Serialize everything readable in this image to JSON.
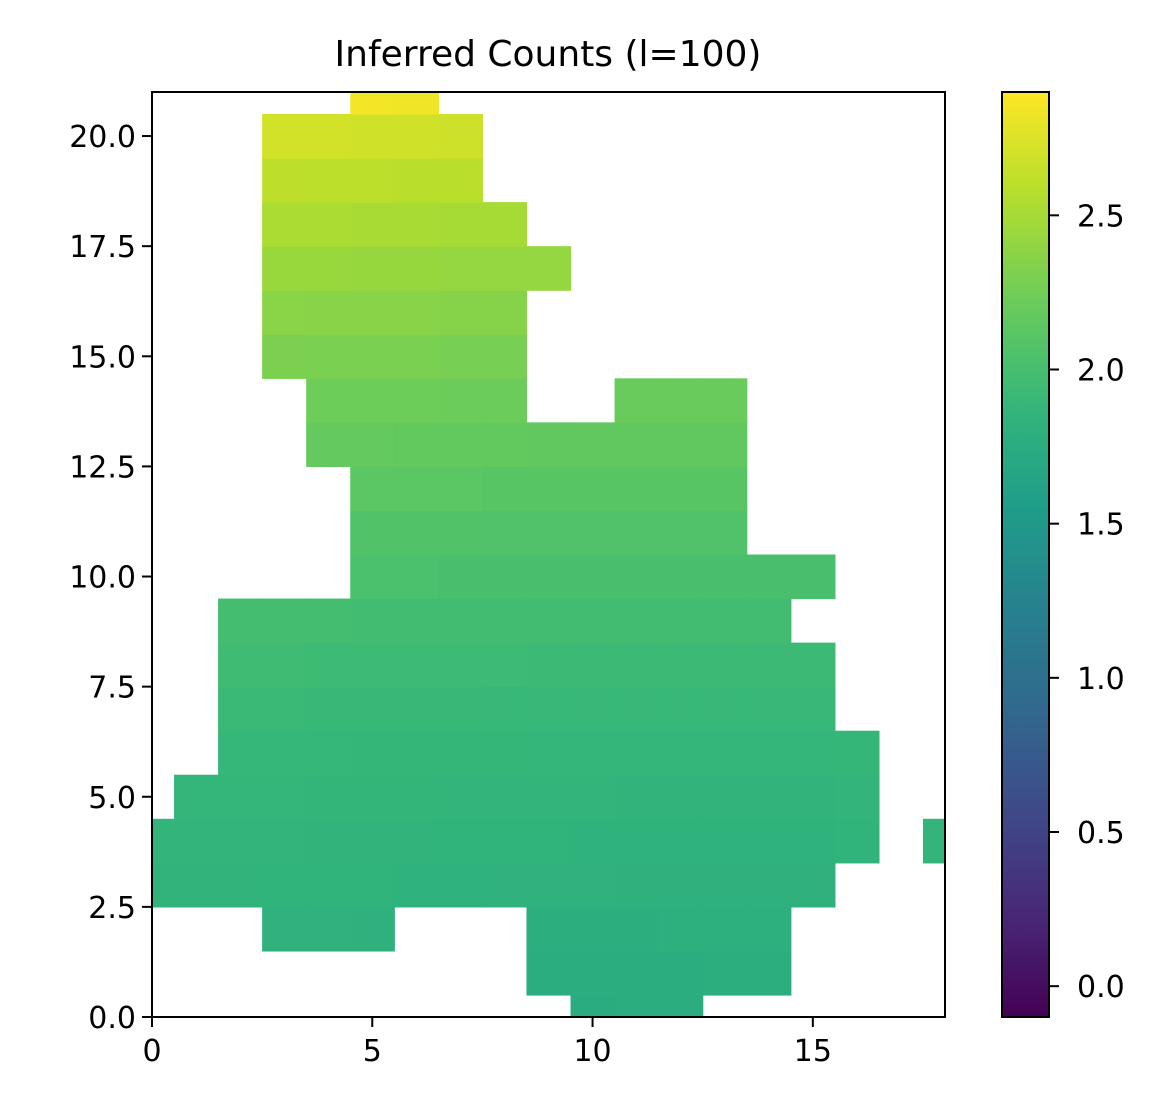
{
  "chart_data": {
    "type": "heatmap",
    "title": "Inferred Counts (l=100)",
    "xlabel": "",
    "ylabel": "",
    "xlim": [
      0,
      18
    ],
    "ylim": [
      0,
      21
    ],
    "x_ticks": [
      "0",
      "5",
      "10",
      "15"
    ],
    "x_tick_values": [
      0,
      5,
      10,
      15
    ],
    "y_ticks": [
      "0.0",
      "2.5",
      "5.0",
      "7.5",
      "10.0",
      "12.5",
      "15.0",
      "17.5",
      "20.0"
    ],
    "y_tick_values": [
      0,
      2.5,
      5,
      7.5,
      10,
      12.5,
      15,
      17.5,
      20
    ],
    "colorbar": {
      "colormap": "viridis",
      "range": [
        -0.1,
        2.9
      ],
      "ticks": [
        "0.0",
        "0.5",
        "1.0",
        "1.5",
        "2.0",
        "2.5"
      ],
      "tick_values": [
        0,
        0.5,
        1,
        1.5,
        2,
        2.5
      ]
    },
    "rows": [
      {
        "y": 0,
        "x_start": 10,
        "x_end": 12,
        "values": [
          1.75,
          1.76,
          1.76
        ]
      },
      {
        "y": 1,
        "x_start": 9,
        "x_end": 14,
        "values": [
          1.76,
          1.77,
          1.77,
          1.77,
          1.78,
          1.78
        ]
      },
      {
        "y": 2,
        "x_start": 3,
        "x_end": 5,
        "values": [
          1.82,
          1.82,
          1.81
        ]
      },
      {
        "y": 2,
        "x_start": 9,
        "x_end": 14,
        "values": [
          1.78,
          1.78,
          1.78,
          1.79,
          1.79,
          1.79
        ]
      },
      {
        "y": 3,
        "x_start": 0,
        "x_end": 15,
        "values": [
          1.85,
          1.85,
          1.85,
          1.84,
          1.84,
          1.84,
          1.83,
          1.83,
          1.82,
          1.82,
          1.82,
          1.81,
          1.81,
          1.81,
          1.81,
          1.81
        ]
      },
      {
        "y": 4,
        "x_start": 0,
        "x_end": 16,
        "values": [
          1.86,
          1.86,
          1.86,
          1.86,
          1.85,
          1.85,
          1.85,
          1.84,
          1.84,
          1.84,
          1.83,
          1.83,
          1.83,
          1.83,
          1.83,
          1.83,
          1.84
        ]
      },
      {
        "y": 4,
        "x_start": 18,
        "x_end": 18,
        "values": [
          1.86
        ]
      },
      {
        "y": 5,
        "x_start": 1,
        "x_end": 16,
        "values": [
          1.88,
          1.88,
          1.88,
          1.87,
          1.87,
          1.87,
          1.86,
          1.86,
          1.86,
          1.86,
          1.85,
          1.85,
          1.85,
          1.85,
          1.85,
          1.86
        ]
      },
      {
        "y": 6,
        "x_start": 2,
        "x_end": 16,
        "values": [
          1.9,
          1.9,
          1.9,
          1.89,
          1.89,
          1.89,
          1.89,
          1.88,
          1.88,
          1.88,
          1.88,
          1.88,
          1.88,
          1.88,
          1.89
        ]
      },
      {
        "y": 7,
        "x_start": 2,
        "x_end": 15,
        "values": [
          1.93,
          1.93,
          1.92,
          1.92,
          1.92,
          1.92,
          1.91,
          1.91,
          1.91,
          1.91,
          1.91,
          1.91,
          1.91,
          1.91
        ]
      },
      {
        "y": 8,
        "x_start": 2,
        "x_end": 15,
        "values": [
          1.96,
          1.96,
          1.95,
          1.95,
          1.95,
          1.95,
          1.95,
          1.94,
          1.94,
          1.94,
          1.94,
          1.94,
          1.94,
          1.94
        ]
      },
      {
        "y": 9,
        "x_start": 2,
        "x_end": 14,
        "values": [
          1.99,
          1.99,
          1.99,
          1.98,
          1.98,
          1.98,
          1.98,
          1.98,
          1.98,
          1.98,
          1.98,
          1.98,
          1.98
        ]
      },
      {
        "y": 10,
        "x_start": 5,
        "x_end": 15,
        "values": [
          2.03,
          2.03,
          2.02,
          2.02,
          2.02,
          2.02,
          2.02,
          2.02,
          2.02,
          2.02,
          2.02
        ]
      },
      {
        "y": 11,
        "x_start": 5,
        "x_end": 13,
        "values": [
          2.07,
          2.07,
          2.07,
          2.06,
          2.06,
          2.06,
          2.06,
          2.06,
          2.06
        ]
      },
      {
        "y": 12,
        "x_start": 5,
        "x_end": 13,
        "values": [
          2.12,
          2.12,
          2.12,
          2.11,
          2.11,
          2.11,
          2.11,
          2.11,
          2.11
        ]
      },
      {
        "y": 13,
        "x_start": 4,
        "x_end": 13,
        "values": [
          2.18,
          2.18,
          2.17,
          2.17,
          2.17,
          2.16,
          2.16,
          2.16,
          2.16,
          2.16
        ]
      },
      {
        "y": 14,
        "x_start": 4,
        "x_end": 8,
        "values": [
          2.23,
          2.23,
          2.23,
          2.22,
          2.22
        ]
      },
      {
        "y": 14,
        "x_start": 11,
        "x_end": 13,
        "values": [
          2.21,
          2.21,
          2.21
        ]
      },
      {
        "y": 15,
        "x_start": 3,
        "x_end": 8,
        "values": [
          2.3,
          2.29,
          2.29,
          2.29,
          2.28,
          2.28
        ]
      },
      {
        "y": 16,
        "x_start": 3,
        "x_end": 8,
        "values": [
          2.37,
          2.36,
          2.36,
          2.36,
          2.35,
          2.35
        ]
      },
      {
        "y": 17,
        "x_start": 3,
        "x_end": 9,
        "values": [
          2.44,
          2.44,
          2.43,
          2.43,
          2.42,
          2.42,
          2.42
        ]
      },
      {
        "y": 18,
        "x_start": 3,
        "x_end": 8,
        "values": [
          2.52,
          2.52,
          2.51,
          2.51,
          2.5,
          2.5
        ]
      },
      {
        "y": 19,
        "x_start": 3,
        "x_end": 7,
        "values": [
          2.61,
          2.6,
          2.6,
          2.59,
          2.59
        ]
      },
      {
        "y": 20,
        "x_start": 3,
        "x_end": 7,
        "values": [
          2.7,
          2.7,
          2.69,
          2.69,
          2.68
        ]
      },
      {
        "y": 21,
        "x_start": 5,
        "x_end": 6,
        "values": [
          2.85,
          2.84
        ]
      }
    ],
    "grid": false,
    "legend": "colorbar-right"
  }
}
